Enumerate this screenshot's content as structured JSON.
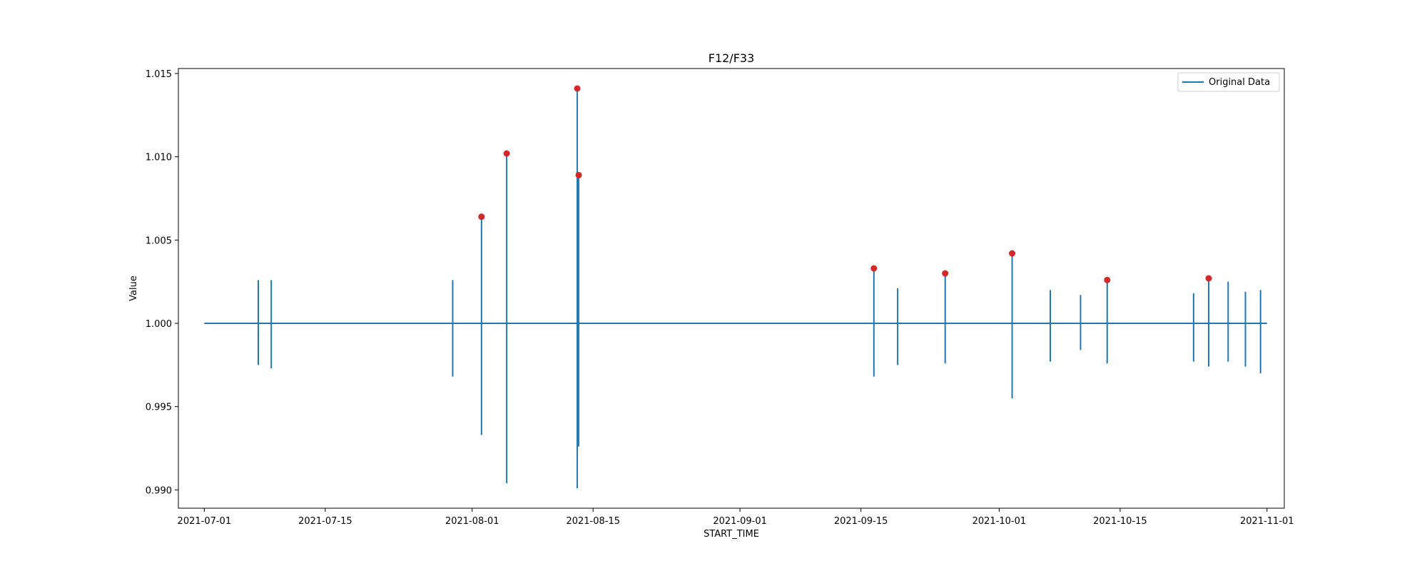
{
  "chart_data": {
    "type": "line",
    "title": "F12/F33",
    "xlabel": "START_TIME",
    "ylabel": "Value",
    "xlim": [
      "2021-06-28",
      "2021-11-03"
    ],
    "ylim": [
      0.9889,
      1.0153
    ],
    "x_ticks": [
      "2021-07-01",
      "2021-07-15",
      "2021-08-01",
      "2021-08-15",
      "2021-09-01",
      "2021-09-15",
      "2021-10-01",
      "2021-10-15",
      "2021-11-01"
    ],
    "y_ticks": [
      "0.990",
      "0.995",
      "1.000",
      "1.005",
      "1.010",
      "1.015"
    ],
    "legend": {
      "position": "top-right",
      "entries": [
        "Original Data"
      ]
    },
    "line_color": "#1f77b4",
    "marker_color": "#d62728",
    "baseline": 1.0,
    "series": [
      {
        "name": "Original Data",
        "x_range": [
          "2021-07-01",
          "2021-11-01"
        ],
        "spikes": [
          {
            "date": "2021-07-07T06:00",
            "high": 1.0026,
            "low": 0.9975
          },
          {
            "date": "2021-07-08T18:00",
            "high": 1.0026,
            "low": 0.9973
          },
          {
            "date": "2021-07-29T18:00",
            "high": 1.0026,
            "low": 0.9968
          },
          {
            "date": "2021-08-02T02:00",
            "high": 1.0064,
            "low": 0.9933
          },
          {
            "date": "2021-08-05T00:00",
            "high": 1.0102,
            "low": 0.9904
          },
          {
            "date": "2021-08-13T04:00",
            "high": 1.0141,
            "low": 0.9901
          },
          {
            "date": "2021-08-13T08:00",
            "high": 1.0089,
            "low": 0.9926
          },
          {
            "date": "2021-09-16T12:00",
            "high": 1.0033,
            "low": 0.9968
          },
          {
            "date": "2021-09-19T06:00",
            "high": 1.0021,
            "low": 0.9975
          },
          {
            "date": "2021-09-24T18:00",
            "high": 1.003,
            "low": 0.9976
          },
          {
            "date": "2021-10-02T12:00",
            "high": 1.0042,
            "low": 0.9955
          },
          {
            "date": "2021-10-06T22:00",
            "high": 1.002,
            "low": 0.9977
          },
          {
            "date": "2021-10-10T10:00",
            "high": 1.0017,
            "low": 0.9984
          },
          {
            "date": "2021-10-13T12:00",
            "high": 1.0026,
            "low": 0.9976
          },
          {
            "date": "2021-10-23T12:00",
            "high": 1.0018,
            "low": 0.9977
          },
          {
            "date": "2021-10-25T06:00",
            "high": 1.0027,
            "low": 0.9974
          },
          {
            "date": "2021-10-27T12:00",
            "high": 1.0025,
            "low": 0.9977
          },
          {
            "date": "2021-10-29T12:00",
            "high": 1.0019,
            "low": 0.9974
          },
          {
            "date": "2021-10-31T06:00",
            "high": 1.002,
            "low": 0.997
          }
        ]
      }
    ],
    "highlighted_points": [
      {
        "date": "2021-08-02T02:00",
        "value": 1.0064
      },
      {
        "date": "2021-08-05T00:00",
        "value": 1.0102
      },
      {
        "date": "2021-08-13T04:00",
        "value": 1.0141
      },
      {
        "date": "2021-08-13T08:00",
        "value": 1.0089
      },
      {
        "date": "2021-09-16T12:00",
        "value": 1.0033
      },
      {
        "date": "2021-09-24T18:00",
        "value": 1.003
      },
      {
        "date": "2021-10-02T12:00",
        "value": 1.0042
      },
      {
        "date": "2021-10-13T12:00",
        "value": 1.0026
      },
      {
        "date": "2021-10-25T06:00",
        "value": 1.0027
      }
    ]
  }
}
